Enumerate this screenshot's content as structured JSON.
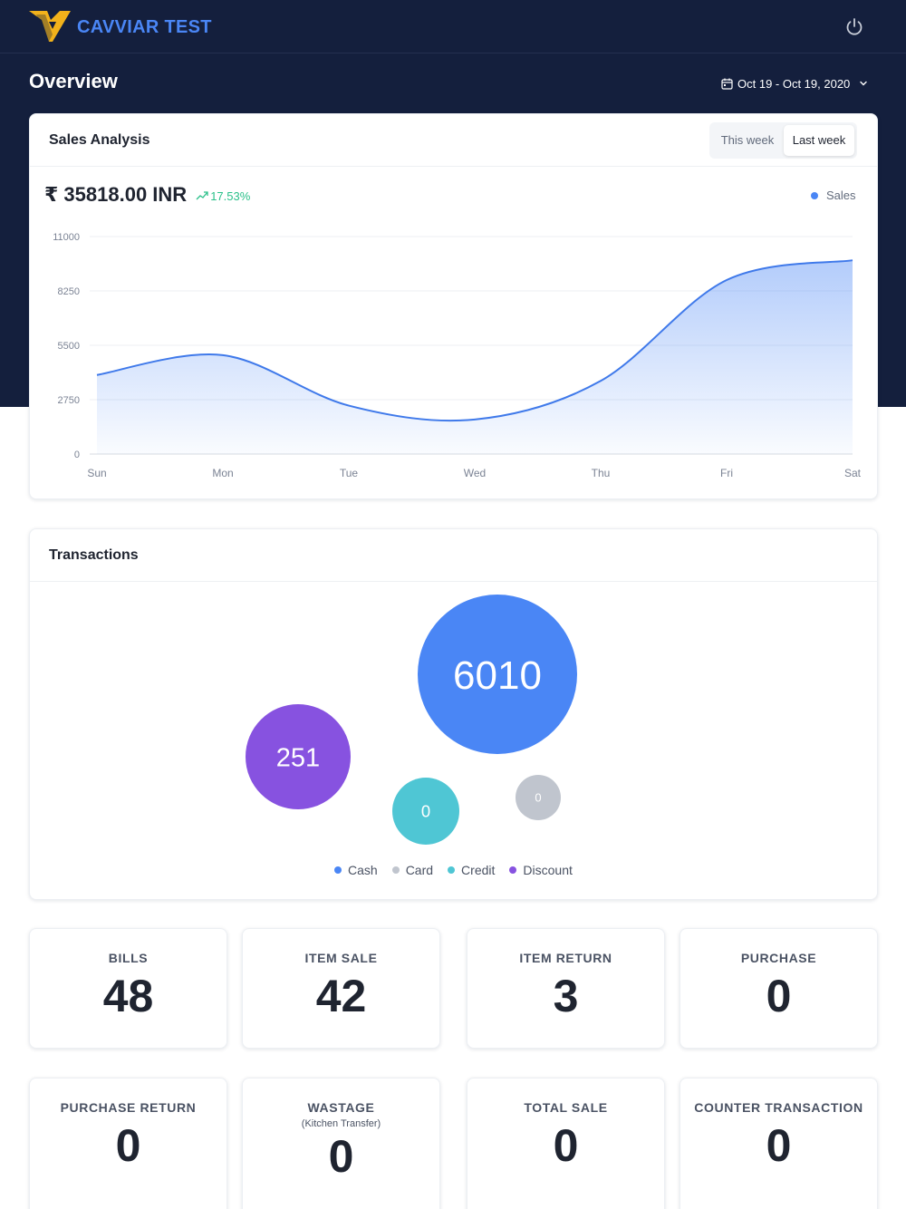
{
  "header": {
    "brand": "CAVVIAR TEST",
    "logo_icon": "cavviar-logo",
    "power_icon": "power-icon"
  },
  "overview": {
    "title": "Overview",
    "date_range": "Oct 19 - Oct 19, 2020"
  },
  "sales_analysis": {
    "title": "Sales Analysis",
    "toggle": {
      "this_week": "This week",
      "last_week": "Last week",
      "selected": "Last week"
    },
    "total": "₹ 35818.00 INR",
    "change": "17.53%",
    "legend": "Sales",
    "accent": "#4a86f5",
    "positive": "#2bc08a"
  },
  "chart_data": {
    "type": "area",
    "categories": [
      "Sun",
      "Mon",
      "Tue",
      "Wed",
      "Thu",
      "Fri",
      "Sat"
    ],
    "series": [
      {
        "name": "Sales",
        "values": [
          4000,
          5000,
          2450,
          1750,
          3700,
          8800,
          9800
        ]
      }
    ],
    "yticks": [
      0,
      2750,
      5500,
      8250,
      11000
    ],
    "ylim": [
      0,
      11000
    ],
    "grid": true,
    "legend_position": "top-right"
  },
  "transactions": {
    "title": "Transactions",
    "items": [
      {
        "label": "Cash",
        "value": 6010,
        "color": "#4a86f5"
      },
      {
        "label": "Card",
        "value": 0,
        "color": "#c0c5ce"
      },
      {
        "label": "Credit",
        "value": 0,
        "color": "#4fc6d4"
      },
      {
        "label": "Discount",
        "value": 251,
        "color": "#8752e0"
      }
    ]
  },
  "stats": [
    {
      "label": "BILLS",
      "value": "48"
    },
    {
      "label": "ITEM SALE",
      "value": "42"
    },
    {
      "label": "ITEM RETURN",
      "value": "3"
    },
    {
      "label": "PURCHASE",
      "value": "0"
    },
    {
      "label": "PURCHASE RETURN",
      "value": "0"
    },
    {
      "label": "WASTAGE",
      "sub": "(Kitchen Transfer)",
      "value": "0"
    },
    {
      "label": "TOTAL SALE",
      "value": "0"
    },
    {
      "label": "COUNTER TRANSACTION",
      "value": "0"
    }
  ]
}
